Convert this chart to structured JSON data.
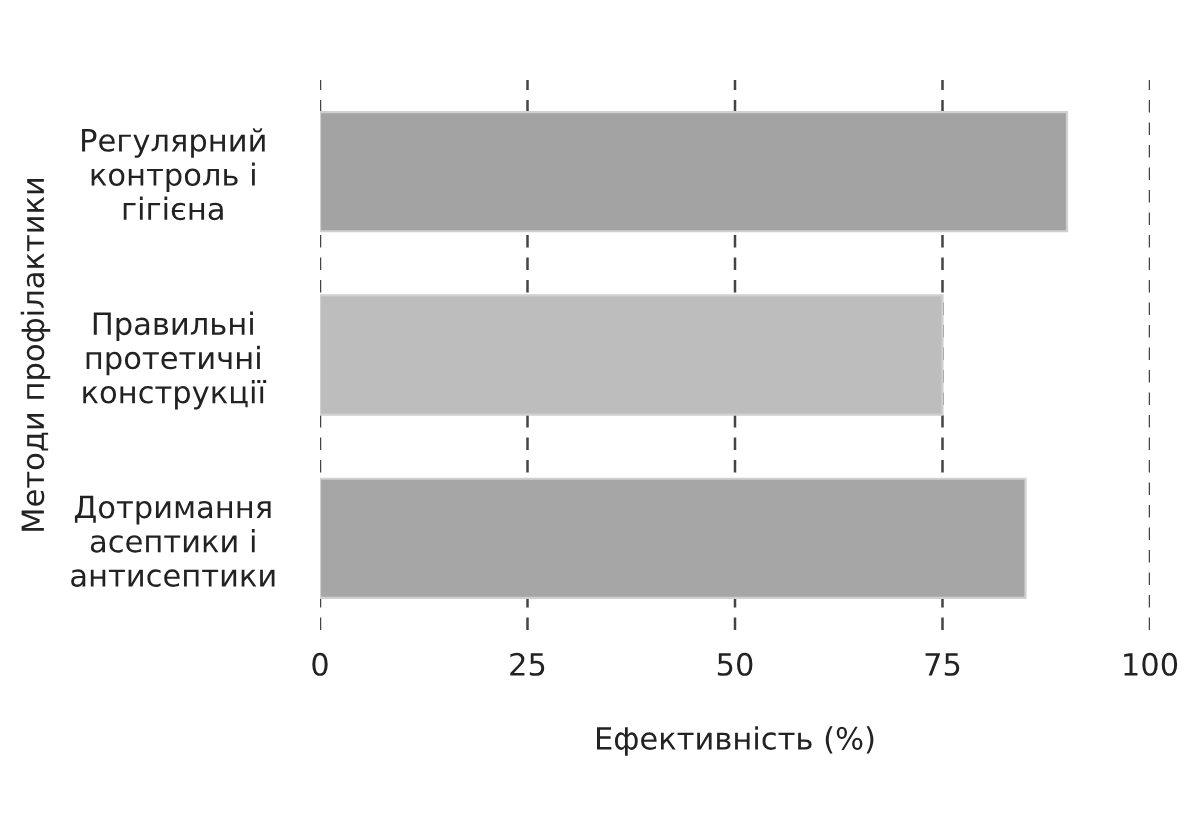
{
  "chart_data": {
    "type": "bar",
    "orientation": "horizontal",
    "xlabel": "Ефективність (%)",
    "ylabel": "Методи профілактики",
    "categories": [
      "Регулярний\nконтроль і\nгігієна",
      "Правильні\nпротетичні\nконструкції",
      "Дотримання\nасептики і\nантисептики"
    ],
    "values": [
      90,
      75,
      85
    ],
    "colors": [
      "#a3a3a3",
      "#bdbdbd",
      "#a6a6a6"
    ],
    "xlim": [
      0,
      100
    ],
    "xticks": [
      0,
      25,
      50,
      75,
      100
    ],
    "grid": "x",
    "line_style": "dashed"
  }
}
